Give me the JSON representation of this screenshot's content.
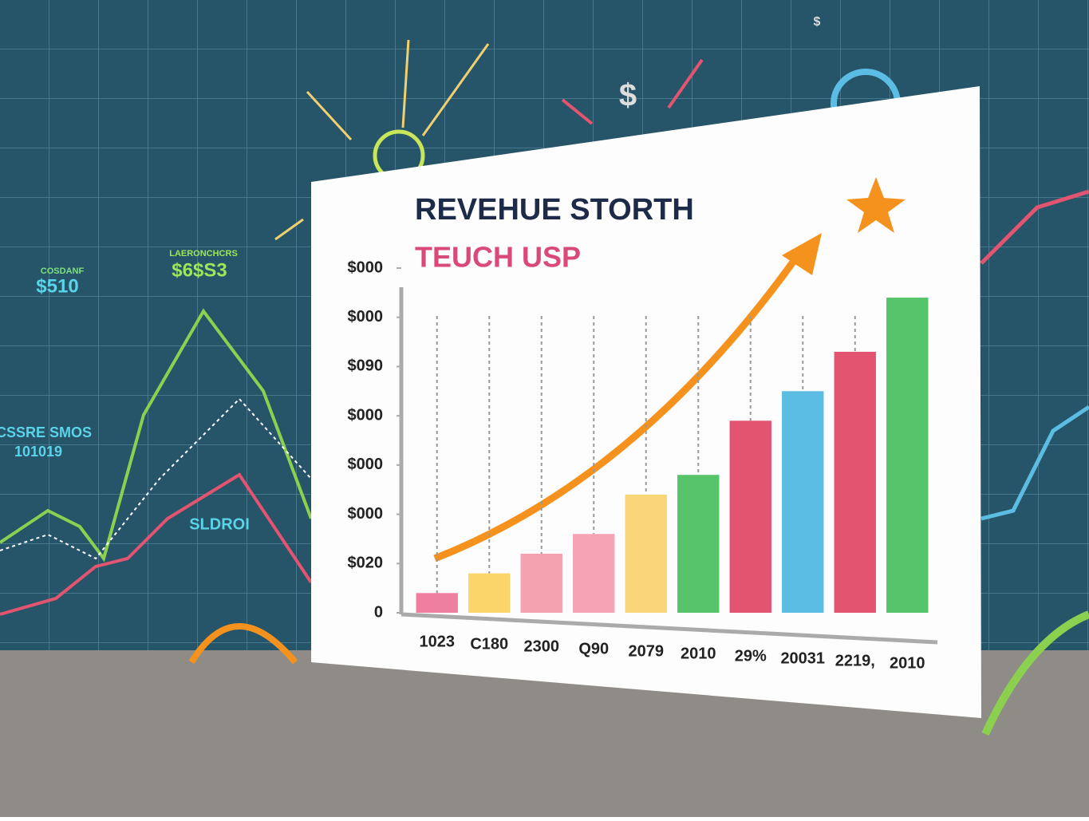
{
  "chart_data": {
    "type": "bar",
    "title": "REVEHUE STORTH",
    "subtitle": "TEUCH USP",
    "categories": [
      "1023",
      "C180",
      "2300",
      "Q90",
      "2079",
      "2010",
      "29%",
      "20031",
      "2219,",
      "2010"
    ],
    "values": [
      0.4,
      0.8,
      1.2,
      1.6,
      2.4,
      2.8,
      3.9,
      4.5,
      5.3,
      6.4
    ],
    "colors": [
      "#ee7fa0",
      "#fbd56a",
      "#f4a1b0",
      "#f5a3b5",
      "#fbd57a",
      "#55c46a",
      "#e2546f",
      "#5bbde3",
      "#e2546f",
      "#55c46a"
    ],
    "ylim": [
      0,
      7
    ],
    "yticks": [
      0,
      {
        "value": 1,
        "label": "$020"
      },
      {
        "value": 2,
        "label": "$000"
      },
      {
        "value": 3,
        "label": "$000"
      },
      {
        "value": 4,
        "label": "$000"
      },
      {
        "value": 5,
        "label": "$090"
      },
      {
        "value": 6,
        "label": "$000"
      },
      {
        "value": 7,
        "label": "$000"
      }
    ],
    "background_texts": [
      "COSDANF",
      "$510",
      "LAERONCHCRS",
      "$6$S3",
      "CSSRE SMOS",
      "101019",
      "SLDROI",
      "$",
      "$"
    ]
  }
}
